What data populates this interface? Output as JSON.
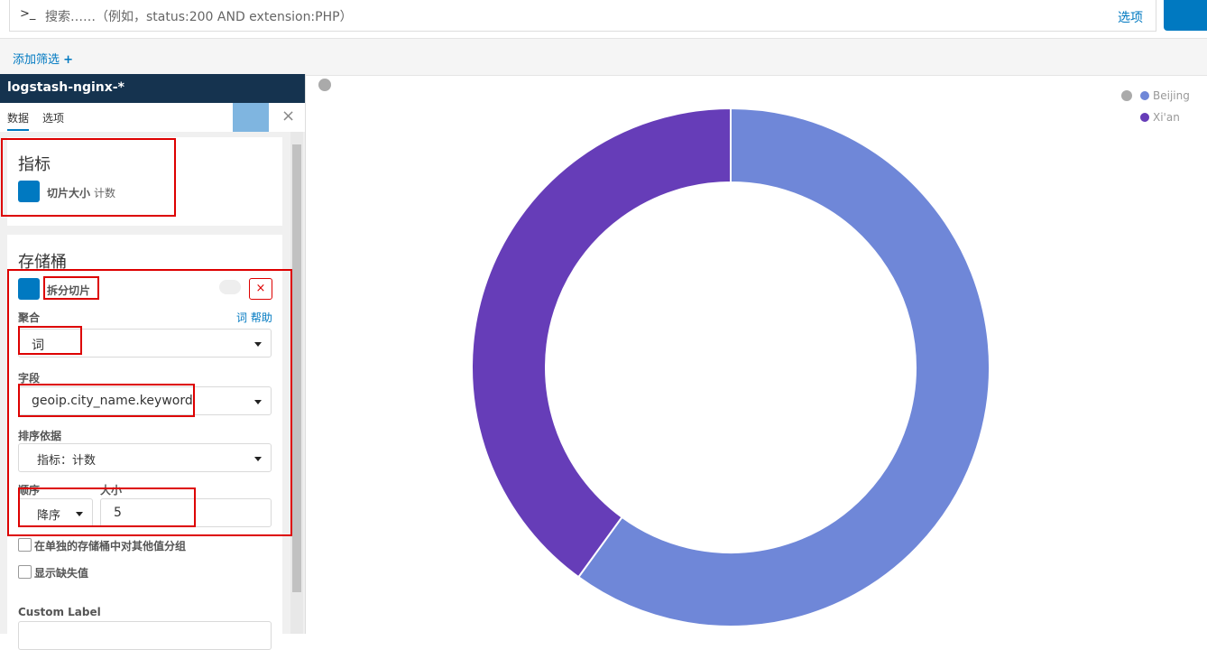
{
  "query_bar": {
    "prompt": ">_",
    "placeholder": "搜索……（例如，status:200 AND extension:PHP）",
    "options": "选项"
  },
  "filter_bar": {
    "add_filter": "添加筛选"
  },
  "sidebar": {
    "index_pattern": "logstash-nginx-*",
    "tabs": [
      "数据",
      "选项"
    ],
    "metrics": {
      "title": "指标",
      "item_label": "切片大小",
      "item_value": "计数"
    },
    "buckets": {
      "title": "存储桶",
      "item": "拆分切片",
      "aggregation_label": "聚合",
      "help": "词 帮助",
      "aggregation": "词",
      "field_label": "字段",
      "field": "geoip.city_name.keyword",
      "order_by_label": "排序依据",
      "order_by": "指标：计数",
      "order_label": "顺序",
      "order": "降序",
      "size_label": "大小",
      "size": 5,
      "other_bucket": "在单独的存储桶中对其他值分组",
      "missing": "显示缺失值",
      "custom_label": "Custom Label"
    }
  },
  "chart_data": {
    "type": "pie",
    "donut": true,
    "categories": [
      "Beijing",
      "Xi'an"
    ],
    "values": [
      60,
      40
    ],
    "colors": [
      "#6f87d8",
      "#663db8"
    ]
  }
}
